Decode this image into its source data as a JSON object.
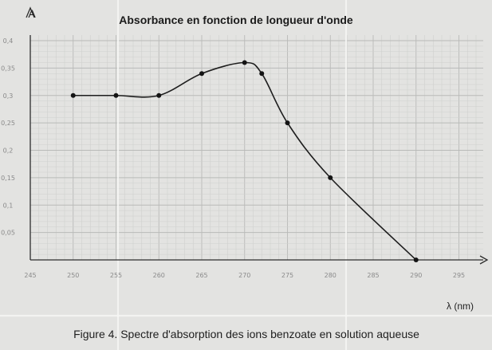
{
  "chart_data": {
    "type": "line",
    "title": "Absorbance en fonction de longueur d'onde",
    "ylabel": "A",
    "xlabel": "λ (nm)",
    "caption": "Figure 4. Spectre d'absorption des ions benzoate en solution aqueuse",
    "x_ticks": [
      "245",
      "250",
      "255",
      "260",
      "265",
      "270",
      "275",
      "280",
      "285",
      "290",
      "295"
    ],
    "y_ticks": [
      "0,05",
      "0,1",
      "0,15",
      "0,2",
      "0,25",
      "0,3",
      "0,35",
      "0,4"
    ],
    "xlim": [
      245,
      297
    ],
    "ylim": [
      0,
      0.42
    ],
    "grid": true,
    "series": [
      {
        "x": [
          250,
          255,
          260,
          265,
          270,
          272,
          275,
          280,
          290
        ],
        "y": [
          0.3,
          0.3,
          0.3,
          0.34,
          0.36,
          0.34,
          0.25,
          0.15,
          0.0
        ]
      }
    ]
  }
}
